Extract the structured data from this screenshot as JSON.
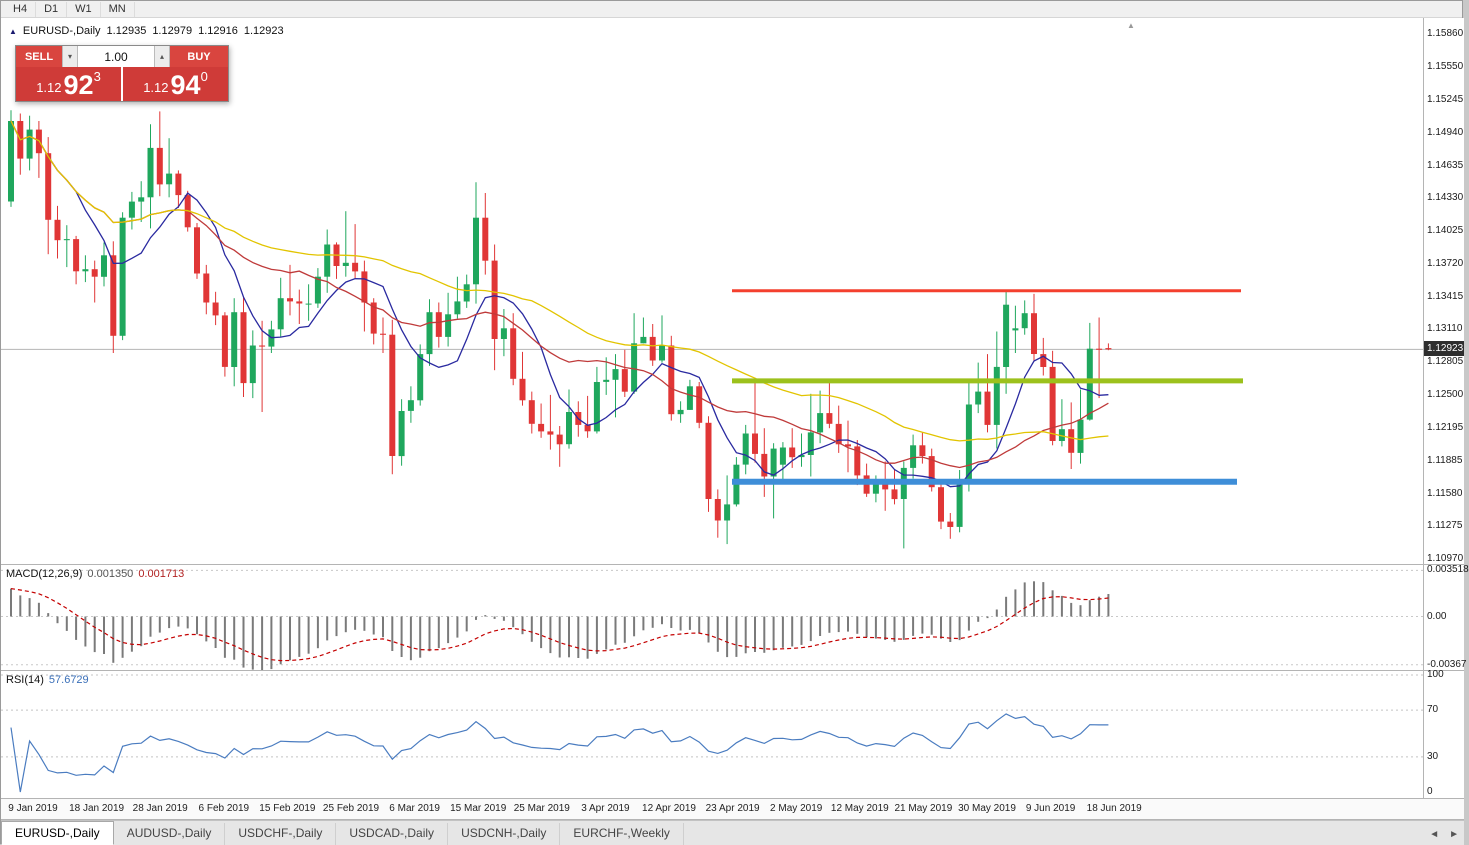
{
  "timeframe_bar": {
    "items": [
      "H4",
      "D1",
      "W1",
      "MN"
    ]
  },
  "chart_header": {
    "collapse_glyph": "▲",
    "symbol": "EURUSD-,Daily",
    "open": "1.12935",
    "high": "1.12979",
    "low": "1.12916",
    "close": "1.12923"
  },
  "shift_marker_glyph": "▲",
  "trade_panel": {
    "sell_label": "SELL",
    "buy_label": "BUY",
    "volume": "1.00",
    "vol_down_glyph": "▾",
    "vol_up_glyph": "▴",
    "bid": {
      "prefix": "1.12",
      "big": "92",
      "pips": "3"
    },
    "ask": {
      "prefix": "1.12",
      "big": "94",
      "pips": "0"
    }
  },
  "price_axis": {
    "ticks": [
      "1.15860",
      "1.15550",
      "1.15245",
      "1.14940",
      "1.14635",
      "1.14330",
      "1.14025",
      "1.13720",
      "1.13415",
      "1.13110",
      "1.12805",
      "1.12500",
      "1.12195",
      "1.11885",
      "1.11580",
      "1.11275",
      "1.10970"
    ],
    "current_badge": "1.12923"
  },
  "macd_panel": {
    "label": "MACD(12,26,9)",
    "value_main": "0.001350",
    "value_signal": "0.001713",
    "axis": [
      "0.003518",
      "0.00",
      "-0.00367"
    ]
  },
  "rsi_panel": {
    "label": "RSI(14)",
    "value": "57.6729",
    "axis": [
      "100",
      "70",
      "30",
      "0"
    ]
  },
  "time_axis": {
    "dates": [
      "9 Jan 2019",
      "18 Jan 2019",
      "28 Jan 2019",
      "6 Feb 2019",
      "15 Feb 2019",
      "25 Feb 2019",
      "6 Mar 2019",
      "15 Mar 2019",
      "25 Mar 2019",
      "3 Apr 2019",
      "12 Apr 2019",
      "23 Apr 2019",
      "2 May 2019",
      "12 May 2019",
      "21 May 2019",
      "30 May 2019",
      "9 Jun 2019",
      "18 Jun 2019"
    ]
  },
  "tab_bar": {
    "tabs": [
      {
        "label": "EURUSD-,Daily",
        "active": true
      },
      {
        "label": "AUDUSD-,Daily",
        "active": false
      },
      {
        "label": "USDCHF-,Daily",
        "active": false
      },
      {
        "label": "USDCAD-,Daily",
        "active": false
      },
      {
        "label": "USDCNH-,Daily",
        "active": false
      },
      {
        "label": "EURCHF-,Weekly",
        "active": false
      }
    ],
    "nav_left": "◄",
    "nav_right": "►"
  },
  "chart_data": [
    {
      "type": "candlestick",
      "title": "EURUSD-,Daily",
      "y_range": [
        1.10925,
        1.16
      ],
      "y_tick_labels": [
        "1.15860",
        "1.15550",
        "1.15245",
        "1.14940",
        "1.14635",
        "1.14330",
        "1.14025",
        "1.13720",
        "1.13415",
        "1.13110",
        "1.12805",
        "1.12500",
        "1.12195",
        "1.11885",
        "1.11580",
        "1.11275",
        "1.10970"
      ],
      "x_tick_dates": [
        "9 Jan 2019",
        "18 Jan 2019",
        "28 Jan 2019",
        "6 Feb 2019",
        "15 Feb 2019",
        "25 Feb 2019",
        "6 Mar 2019",
        "15 Mar 2019",
        "25 Mar 2019",
        "3 Apr 2019",
        "12 Apr 2019",
        "23 Apr 2019",
        "2 May 2019",
        "12 May 2019",
        "21 May 2019",
        "30 May 2019",
        "9 Jun 2019",
        "18 Jun 2019"
      ],
      "bull_color": "#1fa75d",
      "bear_color": "#e03636",
      "current_price": 1.12923,
      "current_price_line_color": "#b4b4b4",
      "moving_averages": [
        {
          "period": 8,
          "color": "#2a2aa0"
        },
        {
          "period": 20,
          "color": "#bf3a3a"
        },
        {
          "period": 45,
          "color": "#e2c400"
        }
      ],
      "levels": [
        {
          "name": "resistance-line",
          "price": 1.1347,
          "color": "#f4402e",
          "width": 3,
          "x1": 731,
          "x2": 1240
        },
        {
          "name": "pivot-line",
          "price": 1.1263,
          "color": "#9cc11c",
          "width": 5,
          "x1": 731,
          "x2": 1242
        },
        {
          "name": "support-line",
          "price": 1.1169,
          "color": "#3e8ed8",
          "width": 6,
          "x1": 731,
          "x2": 1236
        }
      ],
      "columns": [
        "open",
        "high",
        "low",
        "close"
      ],
      "ohlc": [
        [
          1.143,
          1.1515,
          1.1425,
          1.1505
        ],
        [
          1.1505,
          1.1512,
          1.1455,
          1.147
        ],
        [
          1.147,
          1.151,
          1.1459,
          1.1497
        ],
        [
          1.1497,
          1.1505,
          1.1452,
          1.1475
        ],
        [
          1.1475,
          1.149,
          1.1381,
          1.1413
        ],
        [
          1.1413,
          1.1426,
          1.1377,
          1.1394
        ],
        [
          1.1394,
          1.1408,
          1.1369,
          1.1395
        ],
        [
          1.1395,
          1.1398,
          1.1353,
          1.1365
        ],
        [
          1.1365,
          1.138,
          1.1355,
          1.1367
        ],
        [
          1.1367,
          1.1375,
          1.1336,
          1.136
        ],
        [
          1.136,
          1.1392,
          1.1351,
          1.138
        ],
        [
          1.138,
          1.1393,
          1.1289,
          1.1305
        ],
        [
          1.1305,
          1.142,
          1.1301,
          1.1415
        ],
        [
          1.1415,
          1.1439,
          1.1404,
          1.143
        ],
        [
          1.143,
          1.1449,
          1.1411,
          1.1434
        ],
        [
          1.1434,
          1.1502,
          1.1405,
          1.148
        ],
        [
          1.148,
          1.1514,
          1.1435,
          1.1446
        ],
        [
          1.1446,
          1.1489,
          1.1434,
          1.1456
        ],
        [
          1.1456,
          1.1459,
          1.1424,
          1.1436
        ],
        [
          1.1436,
          1.144,
          1.1402,
          1.1406
        ],
        [
          1.1406,
          1.141,
          1.1358,
          1.1363
        ],
        [
          1.1363,
          1.1371,
          1.1325,
          1.1336
        ],
        [
          1.1336,
          1.1346,
          1.1315,
          1.1324
        ],
        [
          1.1324,
          1.1327,
          1.1267,
          1.1276
        ],
        [
          1.1276,
          1.134,
          1.1258,
          1.1327
        ],
        [
          1.1327,
          1.1341,
          1.1248,
          1.1261
        ],
        [
          1.1261,
          1.131,
          1.1247,
          1.1296
        ],
        [
          1.1296,
          1.1319,
          1.1234,
          1.1295
        ],
        [
          1.1295,
          1.1319,
          1.1289,
          1.1311
        ],
        [
          1.1311,
          1.1359,
          1.1304,
          1.134
        ],
        [
          1.134,
          1.1371,
          1.1324,
          1.1337
        ],
        [
          1.1337,
          1.1348,
          1.1316,
          1.1335
        ],
        [
          1.1335,
          1.1353,
          1.1319,
          1.1335
        ],
        [
          1.1335,
          1.1368,
          1.1331,
          1.136
        ],
        [
          1.136,
          1.1404,
          1.1345,
          1.139
        ],
        [
          1.139,
          1.1392,
          1.1358,
          1.137
        ],
        [
          1.137,
          1.1421,
          1.136,
          1.1373
        ],
        [
          1.1373,
          1.1409,
          1.1358,
          1.1365
        ],
        [
          1.1365,
          1.1375,
          1.1309,
          1.1336
        ],
        [
          1.1336,
          1.134,
          1.1297,
          1.1307
        ],
        [
          1.1307,
          1.1322,
          1.1289,
          1.1306
        ],
        [
          1.1306,
          1.132,
          1.1176,
          1.1193
        ],
        [
          1.1193,
          1.1246,
          1.1184,
          1.1235
        ],
        [
          1.1235,
          1.1258,
          1.1224,
          1.1245
        ],
        [
          1.1245,
          1.1297,
          1.124,
          1.1288
        ],
        [
          1.1288,
          1.1339,
          1.1277,
          1.1327
        ],
        [
          1.1327,
          1.1336,
          1.1294,
          1.1304
        ],
        [
          1.1304,
          1.1345,
          1.1295,
          1.1325
        ],
        [
          1.1325,
          1.136,
          1.1321,
          1.1337
        ],
        [
          1.1337,
          1.1362,
          1.1331,
          1.1353
        ],
        [
          1.1353,
          1.1448,
          1.1335,
          1.1415
        ],
        [
          1.1415,
          1.1438,
          1.1362,
          1.1375
        ],
        [
          1.1375,
          1.139,
          1.1273,
          1.1302
        ],
        [
          1.1302,
          1.133,
          1.1286,
          1.1312
        ],
        [
          1.1312,
          1.1326,
          1.1259,
          1.1265
        ],
        [
          1.1265,
          1.129,
          1.124,
          1.1245
        ],
        [
          1.1245,
          1.1253,
          1.1214,
          1.1223
        ],
        [
          1.1223,
          1.1242,
          1.121,
          1.1216
        ],
        [
          1.1216,
          1.125,
          1.1199,
          1.1213
        ],
        [
          1.1213,
          1.1221,
          1.1183,
          1.1204
        ],
        [
          1.1204,
          1.1255,
          1.12,
          1.1234
        ],
        [
          1.1234,
          1.1244,
          1.1211,
          1.1222
        ],
        [
          1.1222,
          1.1249,
          1.121,
          1.1216
        ],
        [
          1.1216,
          1.1276,
          1.1214,
          1.1262
        ],
        [
          1.1262,
          1.1285,
          1.125,
          1.1264
        ],
        [
          1.1264,
          1.1288,
          1.1229,
          1.1274
        ],
        [
          1.1274,
          1.1292,
          1.1248,
          1.1253
        ],
        [
          1.1253,
          1.1326,
          1.1251,
          1.1298
        ],
        [
          1.1298,
          1.1322,
          1.1298,
          1.1304
        ],
        [
          1.1304,
          1.1316,
          1.1277,
          1.1282
        ],
        [
          1.1282,
          1.1324,
          1.128,
          1.1296
        ],
        [
          1.1296,
          1.1305,
          1.1226,
          1.1232
        ],
        [
          1.1232,
          1.1244,
          1.1224,
          1.1236
        ],
        [
          1.1236,
          1.1264,
          1.1236,
          1.1258
        ],
        [
          1.1258,
          1.1262,
          1.1219,
          1.1224
        ],
        [
          1.1224,
          1.123,
          1.1141,
          1.1153
        ],
        [
          1.1153,
          1.1162,
          1.1117,
          1.1133
        ],
        [
          1.1133,
          1.1175,
          1.1111,
          1.1148
        ],
        [
          1.1148,
          1.1192,
          1.1146,
          1.1185
        ],
        [
          1.1185,
          1.1222,
          1.1176,
          1.1214
        ],
        [
          1.1214,
          1.1266,
          1.1187,
          1.1195
        ],
        [
          1.1195,
          1.1219,
          1.1155,
          1.1174
        ],
        [
          1.1174,
          1.1205,
          1.1135,
          1.12
        ],
        [
          1.1185,
          1.1206,
          1.1167,
          1.1201
        ],
        [
          1.1201,
          1.1219,
          1.1182,
          1.1192
        ],
        [
          1.1192,
          1.1214,
          1.1183,
          1.1194
        ],
        [
          1.1194,
          1.1251,
          1.1174,
          1.1215
        ],
        [
          1.1215,
          1.1254,
          1.1205,
          1.1233
        ],
        [
          1.1233,
          1.1264,
          1.1219,
          1.1223
        ],
        [
          1.1223,
          1.124,
          1.1196,
          1.1204
        ],
        [
          1.1204,
          1.1226,
          1.1178,
          1.1202
        ],
        [
          1.1202,
          1.1208,
          1.1166,
          1.1175
        ],
        [
          1.1175,
          1.1186,
          1.1155,
          1.1158
        ],
        [
          1.1158,
          1.1175,
          1.115,
          1.1167
        ],
        [
          1.1167,
          1.1188,
          1.1142,
          1.1162
        ],
        [
          1.1162,
          1.118,
          1.1148,
          1.1153
        ],
        [
          1.1153,
          1.1188,
          1.1107,
          1.1182
        ],
        [
          1.1182,
          1.1213,
          1.1172,
          1.1203
        ],
        [
          1.1203,
          1.1215,
          1.1186,
          1.1193
        ],
        [
          1.1193,
          1.12,
          1.116,
          1.1164
        ],
        [
          1.1164,
          1.117,
          1.1125,
          1.1132
        ],
        [
          1.1132,
          1.114,
          1.1116,
          1.1127
        ],
        [
          1.1127,
          1.118,
          1.1122,
          1.1168
        ],
        [
          1.1168,
          1.1263,
          1.116,
          1.1241
        ],
        [
          1.1241,
          1.128,
          1.1233,
          1.1253
        ],
        [
          1.1253,
          1.1288,
          1.1215,
          1.1222
        ],
        [
          1.1222,
          1.1309,
          1.12,
          1.1276
        ],
        [
          1.1276,
          1.1348,
          1.1251,
          1.1334
        ],
        [
          1.131,
          1.1333,
          1.1289,
          1.1312
        ],
        [
          1.1312,
          1.1338,
          1.1306,
          1.1326
        ],
        [
          1.1326,
          1.1344,
          1.1282,
          1.1288
        ],
        [
          1.1288,
          1.1303,
          1.1268,
          1.1276
        ],
        [
          1.1276,
          1.1291,
          1.1203,
          1.1207
        ],
        [
          1.1207,
          1.1246,
          1.1202,
          1.1218
        ],
        [
          1.1218,
          1.1243,
          1.1181,
          1.1196
        ],
        [
          1.1196,
          1.1255,
          1.1186,
          1.1227
        ],
        [
          1.1227,
          1.1317,
          1.1226,
          1.1293
        ],
        [
          1.1293,
          1.1322,
          1.1247,
          1.1292
        ],
        [
          1.12935,
          1.12979,
          1.12916,
          1.12923
        ]
      ]
    },
    {
      "type": "macd",
      "title": "MACD(12,26,9)",
      "params": [
        12,
        26,
        9
      ],
      "y_range": [
        -0.004,
        0.00385
      ],
      "y_tick_labels": [
        "0.003518",
        "0.00",
        "-0.00367"
      ],
      "current_main": 0.00135,
      "current_signal": 0.001713,
      "histogram_color": "#7a7a7a",
      "signal_color": "#c40000",
      "grid_color": "#c8c8c8"
    },
    {
      "type": "rsi",
      "title": "RSI(14)",
      "period": 14,
      "y_range": [
        0,
        100
      ],
      "grid_levels": [
        100,
        70,
        30
      ],
      "y_tick_labels": [
        "100",
        "70",
        "30",
        "0"
      ],
      "current": 57.6729,
      "line_color": "#4a7cc0",
      "grid_color": "#c4c4c4"
    }
  ]
}
